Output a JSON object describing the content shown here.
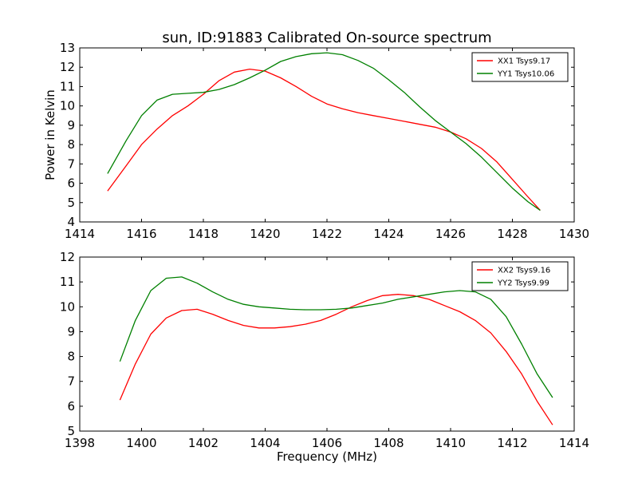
{
  "figure": {
    "title": "sun, ID:91883 Calibrated On-source spectrum"
  },
  "chart_data": [
    {
      "type": "line",
      "title": "sun, ID:91883 Calibrated On-source spectrum",
      "xlabel": "",
      "ylabel": "Power in Kelvin",
      "xlim": [
        1414,
        1430
      ],
      "ylim": [
        4,
        13
      ],
      "xticks": [
        1414,
        1416,
        1418,
        1420,
        1422,
        1424,
        1426,
        1428,
        1430
      ],
      "yticks": [
        4,
        5,
        6,
        7,
        8,
        9,
        10,
        11,
        12,
        13
      ],
      "grid": false,
      "legend": "top-right",
      "series": [
        {
          "name": "XX1 Tsys9.17",
          "color": "#ff0000",
          "x": [
            1414.9,
            1415.5,
            1416.0,
            1416.5,
            1417.0,
            1417.5,
            1418.0,
            1418.5,
            1419.0,
            1419.5,
            1420.0,
            1420.5,
            1421.0,
            1421.5,
            1422.0,
            1422.5,
            1423.0,
            1423.5,
            1424.0,
            1424.5,
            1425.0,
            1425.5,
            1426.0,
            1426.5,
            1427.0,
            1427.5,
            1428.0,
            1428.5,
            1428.9
          ],
          "y": [
            5.6,
            6.9,
            8.0,
            8.8,
            9.5,
            10.0,
            10.6,
            11.3,
            11.75,
            11.9,
            11.8,
            11.45,
            11.0,
            10.5,
            10.1,
            9.85,
            9.65,
            9.5,
            9.35,
            9.2,
            9.05,
            8.9,
            8.65,
            8.3,
            7.8,
            7.1,
            6.2,
            5.3,
            4.6
          ]
        },
        {
          "name": "YY1 Tsys10.06",
          "color": "#008000",
          "x": [
            1414.9,
            1415.5,
            1416.0,
            1416.5,
            1417.0,
            1417.5,
            1418.0,
            1418.5,
            1419.0,
            1419.5,
            1420.0,
            1420.5,
            1421.0,
            1421.5,
            1422.0,
            1422.5,
            1423.0,
            1423.5,
            1424.0,
            1424.5,
            1425.0,
            1425.5,
            1426.0,
            1426.5,
            1427.0,
            1427.5,
            1428.0,
            1428.5,
            1428.9
          ],
          "y": [
            6.5,
            8.2,
            9.5,
            10.3,
            10.6,
            10.65,
            10.7,
            10.85,
            11.1,
            11.45,
            11.85,
            12.3,
            12.55,
            12.7,
            12.75,
            12.65,
            12.35,
            11.95,
            11.35,
            10.7,
            9.95,
            9.25,
            8.65,
            8.05,
            7.35,
            6.55,
            5.75,
            5.05,
            4.6
          ]
        }
      ]
    },
    {
      "type": "line",
      "title": "",
      "xlabel": "Frequency (MHz)",
      "ylabel": "",
      "xlim": [
        1398,
        1414
      ],
      "ylim": [
        5,
        12
      ],
      "xticks": [
        1398,
        1400,
        1402,
        1404,
        1406,
        1408,
        1410,
        1412,
        1414
      ],
      "yticks": [
        5,
        6,
        7,
        8,
        9,
        10,
        11,
        12
      ],
      "grid": false,
      "legend": "top-right",
      "series": [
        {
          "name": "XX2 Tsys9.16",
          "color": "#ff0000",
          "x": [
            1399.3,
            1399.8,
            1400.3,
            1400.8,
            1401.3,
            1401.8,
            1402.3,
            1402.8,
            1403.3,
            1403.8,
            1404.3,
            1404.8,
            1405.3,
            1405.8,
            1406.3,
            1406.8,
            1407.3,
            1407.8,
            1408.3,
            1408.8,
            1409.3,
            1409.8,
            1410.3,
            1410.8,
            1411.3,
            1411.8,
            1412.3,
            1412.8,
            1413.3
          ],
          "y": [
            6.25,
            7.7,
            8.9,
            9.55,
            9.85,
            9.9,
            9.7,
            9.45,
            9.25,
            9.15,
            9.15,
            9.2,
            9.3,
            9.45,
            9.7,
            10.0,
            10.25,
            10.45,
            10.5,
            10.45,
            10.3,
            10.05,
            9.8,
            9.45,
            8.95,
            8.2,
            7.3,
            6.2,
            5.25
          ]
        },
        {
          "name": "YY2 Tsys9.99",
          "color": "#008000",
          "x": [
            1399.3,
            1399.8,
            1400.3,
            1400.8,
            1401.3,
            1401.8,
            1402.3,
            1402.8,
            1403.3,
            1403.8,
            1404.3,
            1404.8,
            1405.3,
            1405.8,
            1406.3,
            1406.8,
            1407.3,
            1407.8,
            1408.3,
            1408.8,
            1409.3,
            1409.8,
            1410.3,
            1410.8,
            1411.3,
            1411.8,
            1412.3,
            1412.8,
            1413.3
          ],
          "y": [
            7.8,
            9.45,
            10.65,
            11.15,
            11.2,
            10.95,
            10.6,
            10.3,
            10.1,
            10.0,
            9.95,
            9.9,
            9.88,
            9.88,
            9.9,
            9.95,
            10.05,
            10.15,
            10.3,
            10.4,
            10.5,
            10.6,
            10.65,
            10.6,
            10.3,
            9.6,
            8.5,
            7.3,
            6.35
          ]
        }
      ]
    }
  ]
}
